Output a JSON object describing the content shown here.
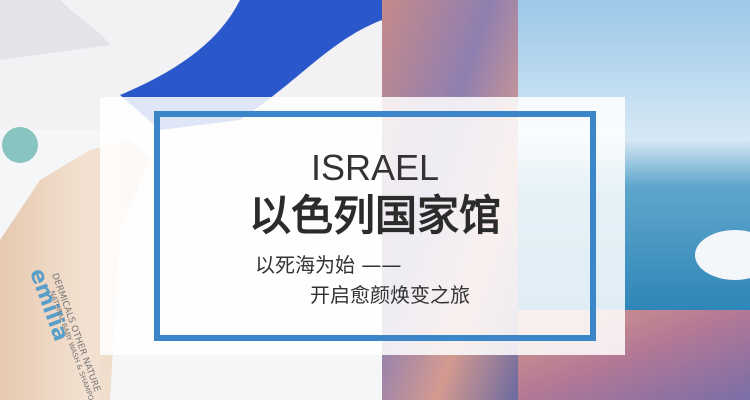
{
  "banner": {
    "title_en": "ISRAEL",
    "title_cn": "以色列国家馆",
    "subtitle_line1": "以死海为始 ——",
    "subtitle_line2": "开启愈颜焕变之旅"
  },
  "product": {
    "brand": "emilia",
    "label_side": "DERMICALS OTHER NATURE",
    "label_main": "NATURAL BABY WASH & SHAMPOO"
  }
}
